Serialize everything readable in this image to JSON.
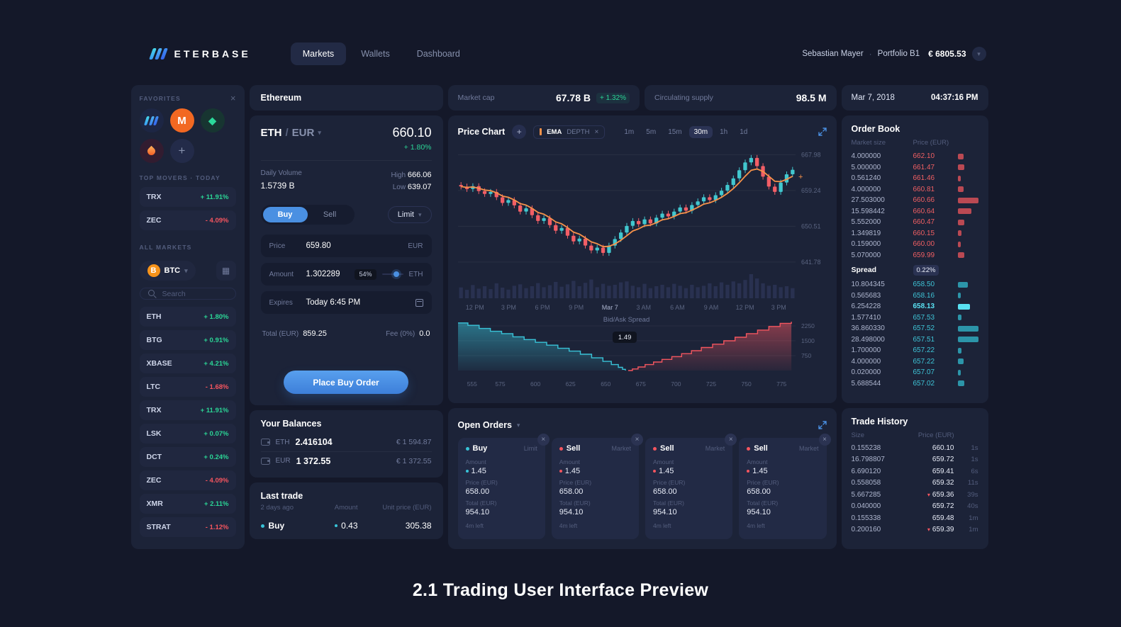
{
  "icons": {
    "close": "×",
    "chevron_down": "▾",
    "plus": "+",
    "down_triangle": "▾",
    "grid": "▦"
  },
  "brand": {
    "name": "ETERBASE"
  },
  "nav": {
    "items": [
      {
        "label": "Markets",
        "active": true
      },
      {
        "label": "Wallets"
      },
      {
        "label": "Dashboard"
      }
    ]
  },
  "user": {
    "name": "Sebastian Mayer",
    "sep": "·",
    "portfolio": "Portfolio B1",
    "balance": "€ 6805.53"
  },
  "sidebar": {
    "favorites_label": "FAVORITES",
    "top_movers_label": "TOP MOVERS · TODAY",
    "all_markets_label": "ALL MARKETS",
    "favorites": [
      {
        "name": "eterbase-icon",
        "style": "eterbase",
        "glyph": "",
        "bg": "#1d2644"
      },
      {
        "name": "monero-icon",
        "style": "monero",
        "glyph": "M",
        "bg": "#f26822"
      },
      {
        "name": "green-coin-icon",
        "style": "coin",
        "glyph": "◆",
        "bg": "#173531"
      },
      {
        "name": "flame-icon",
        "style": "flame",
        "glyph": "",
        "bg": "#321c30"
      },
      {
        "name": "add-favorite-icon",
        "style": "add",
        "glyph": "+",
        "bg": "#232b49"
      }
    ],
    "top_movers": [
      {
        "pair": "TRX",
        "change": "+ 11.91%",
        "dir": "up"
      },
      {
        "pair": "ZEC",
        "change": "- 4.09%",
        "dir": "down"
      }
    ],
    "quote": {
      "label": "BTC",
      "icon_glyph": "B"
    },
    "search": {
      "placeholder": "Search"
    },
    "markets": [
      {
        "pair": "ETH",
        "change": "+ 1.80%",
        "dir": "up"
      },
      {
        "pair": "BTG",
        "change": "+ 0.91%",
        "dir": "up"
      },
      {
        "pair": "XBASE",
        "change": "+ 4.21%",
        "dir": "up"
      },
      {
        "pair": "LTC",
        "change": "- 1.68%",
        "dir": "down"
      },
      {
        "pair": "TRX",
        "change": "+ 11.91%",
        "dir": "up"
      },
      {
        "pair": "LSK",
        "change": "+ 0.07%",
        "dir": "up"
      },
      {
        "pair": "DCT",
        "change": "+ 0.24%",
        "dir": "up"
      },
      {
        "pair": "ZEC",
        "change": "- 4.09%",
        "dir": "down"
      },
      {
        "pair": "XMR",
        "change": "+ 2.11%",
        "dir": "up"
      },
      {
        "pair": "STRAT",
        "change": "- 1.12%",
        "dir": "down"
      }
    ]
  },
  "market_header": {
    "title": "Ethereum"
  },
  "ticker": {
    "base": "ETH",
    "sep": "/",
    "quote": "EUR",
    "price": "660.10",
    "change": "+ 1.80%"
  },
  "market_stats": {
    "volume_label": "Daily Volume",
    "volume": "1.5739 B",
    "high_label": "High",
    "high": "666.06",
    "low_label": "Low",
    "low": "639.07"
  },
  "order_form": {
    "buy_label": "Buy",
    "sell_label": "Sell",
    "type": "Limit",
    "price": {
      "label": "Price",
      "value": "659.80",
      "unit": "EUR"
    },
    "amount": {
      "label": "Amount",
      "value": "1.302289",
      "percent": "54%",
      "unit": "ETH"
    },
    "expires": {
      "label": "Expires",
      "value": "Today 6:45 PM"
    },
    "total_label": "Total (EUR)",
    "total": "859.25",
    "fee_label": "Fee (0%)",
    "fee": "0.0",
    "submit_label": "Place Buy Order"
  },
  "balances": {
    "title": "Your Balances",
    "rows": [
      {
        "currency": "ETH",
        "amount": "2.416104",
        "fiat": "€ 1 594.87"
      },
      {
        "currency": "EUR",
        "amount": "1 372.55",
        "fiat": "€ 1 372.55"
      }
    ]
  },
  "last_trade": {
    "title": "Last trade",
    "ago": "2 days ago",
    "amount_col": "Amount",
    "price_col": "Unit price (EUR)",
    "side": "Buy",
    "amount": "0.43",
    "price": "305.38"
  },
  "stats": {
    "market_cap_label": "Market cap",
    "market_cap": "67.78 B",
    "market_cap_change": "+ 1.32%",
    "supply_label": "Circulating supply",
    "supply": "98.5 M",
    "date": "Mar 7, 2018",
    "time": "04:37:16 PM"
  },
  "price_chart": {
    "title": "Price Chart",
    "ema_label": "EMA",
    "depth_label": "DEPTH",
    "intervals": [
      {
        "label": "1m"
      },
      {
        "label": "5m"
      },
      {
        "label": "15m"
      },
      {
        "label": "30m",
        "active": true
      },
      {
        "label": "1h"
      },
      {
        "label": "1d"
      }
    ]
  },
  "chart_data": [
    {
      "type": "candlestick",
      "title": "Price Chart",
      "overlay": "EMA",
      "x_labels": [
        "12 PM",
        "3 PM",
        "6 PM",
        "9 PM",
        "Mar 7",
        "3 AM",
        "6 AM",
        "9 AM",
        "12 PM",
        "3 PM"
      ],
      "y_ticks": [
        667.98,
        659.24,
        650.51,
        641.78
      ],
      "ylim": [
        640.2,
        669.6
      ],
      "open_first": 660.6,
      "closes": [
        660.2,
        659.6,
        660.3,
        659.1,
        658.4,
        658.9,
        657.6,
        656.2,
        656.9,
        655.6,
        654.1,
        654.9,
        653.2,
        651.8,
        652.5,
        650.8,
        649.4,
        650.1,
        648.2,
        646.8,
        647.5,
        645.8,
        644.6,
        645.3,
        644.0,
        645.8,
        647.4,
        649.0,
        650.6,
        651.8,
        651.0,
        652.2,
        651.2,
        652.6,
        653.6,
        652.9,
        654.1,
        655.1,
        654.3,
        655.7,
        656.6,
        657.6,
        656.9,
        658.1,
        659.2,
        660.6,
        662.2,
        664.2,
        666.1,
        667.2,
        665.2,
        662.6,
        660.2,
        658.9,
        661.2,
        663.2,
        664.3
      ],
      "volumes": [
        0.45,
        0.35,
        0.55,
        0.4,
        0.5,
        0.38,
        0.62,
        0.44,
        0.36,
        0.52,
        0.58,
        0.42,
        0.5,
        0.63,
        0.46,
        0.54,
        0.68,
        0.48,
        0.58,
        0.72,
        0.5,
        0.64,
        0.78,
        0.46,
        0.6,
        0.52,
        0.56,
        0.66,
        0.7,
        0.52,
        0.46,
        0.6,
        0.42,
        0.5,
        0.56,
        0.46,
        0.6,
        0.52,
        0.42,
        0.56,
        0.46,
        0.52,
        0.62,
        0.5,
        0.66,
        0.56,
        0.7,
        0.62,
        0.76,
        1.0,
        0.82,
        0.62,
        0.52,
        0.56,
        0.46,
        0.5,
        0.42
      ]
    },
    {
      "type": "depth",
      "title": "Bid/Ask Spread",
      "spread_label": "1.49",
      "xlim": [
        545,
        785
      ],
      "ylim": [
        0,
        2500
      ],
      "y_ticks": [
        2250,
        1500,
        750
      ],
      "x_ticks": [
        555,
        575,
        600,
        625,
        650,
        675,
        700,
        725,
        750,
        775
      ],
      "bids": [
        [
          545,
          2400
        ],
        [
          552,
          2280
        ],
        [
          560,
          2120
        ],
        [
          568,
          1980
        ],
        [
          576,
          1860
        ],
        [
          584,
          1700
        ],
        [
          592,
          1560
        ],
        [
          600,
          1420
        ],
        [
          608,
          1280
        ],
        [
          616,
          1120
        ],
        [
          624,
          980
        ],
        [
          632,
          820
        ],
        [
          640,
          640
        ],
        [
          648,
          460
        ],
        [
          654,
          300
        ],
        [
          659,
          160
        ],
        [
          662,
          60
        ],
        [
          664,
          0
        ]
      ],
      "asks": [
        [
          666,
          0
        ],
        [
          669,
          80
        ],
        [
          673,
          180
        ],
        [
          678,
          300
        ],
        [
          684,
          430
        ],
        [
          690,
          560
        ],
        [
          697,
          700
        ],
        [
          704,
          850
        ],
        [
          711,
          1000
        ],
        [
          718,
          1160
        ],
        [
          726,
          1330
        ],
        [
          734,
          1500
        ],
        [
          742,
          1680
        ],
        [
          750,
          1860
        ],
        [
          758,
          2040
        ],
        [
          766,
          2220
        ],
        [
          774,
          2380
        ],
        [
          782,
          2460
        ]
      ]
    }
  ],
  "order_book": {
    "title": "Order Book",
    "size_col": "Market size",
    "price_col": "Price (EUR)",
    "asks": [
      {
        "size": "4.000000",
        "price": "662.10"
      },
      {
        "size": "5.000000",
        "price": "661.47"
      },
      {
        "size": "0.561240",
        "price": "661.46"
      },
      {
        "size": "4.000000",
        "price": "660.81"
      },
      {
        "size": "27.503000",
        "price": "660.66"
      },
      {
        "size": "15.598442",
        "price": "660.64"
      },
      {
        "size": "5.552000",
        "price": "660.47"
      },
      {
        "size": "1.349819",
        "price": "660.15"
      },
      {
        "size": "0.159000",
        "price": "660.00"
      },
      {
        "size": "5.070000",
        "price": "659.99"
      }
    ],
    "spread_label": "Spread",
    "spread": "0.22%",
    "bids": [
      {
        "size": "10.804345",
        "price": "658.50"
      },
      {
        "size": "0.565683",
        "price": "658.16"
      },
      {
        "size": "6.254228",
        "price": "658.13",
        "hl": true
      },
      {
        "size": "1.577410",
        "price": "657.53"
      },
      {
        "size": "36.860330",
        "price": "657.52"
      },
      {
        "size": "28.498000",
        "price": "657.51"
      },
      {
        "size": "1.700000",
        "price": "657.22"
      },
      {
        "size": "4.000000",
        "price": "657.22"
      },
      {
        "size": "0.020000",
        "price": "657.07"
      },
      {
        "size": "5.688544",
        "price": "657.02"
      }
    ]
  },
  "open_orders": {
    "title": "Open Orders",
    "cards": [
      {
        "side": "Buy",
        "type": "Limit",
        "dir": "buy",
        "amount_label": "Amount",
        "amount": "1.45",
        "price_label": "Price (EUR)",
        "price": "658.00",
        "total_label": "Total (EUR)",
        "total": "954.10",
        "time_left": "4m left"
      },
      {
        "side": "Sell",
        "type": "Market",
        "dir": "sell",
        "amount_label": "Amount",
        "amount": "1.45",
        "price_label": "Price (EUR)",
        "price": "658.00",
        "total_label": "Total (EUR)",
        "total": "954.10",
        "time_left": "4m left"
      },
      {
        "side": "Sell",
        "type": "Market",
        "dir": "sell",
        "amount_label": "Amount",
        "amount": "1.45",
        "price_label": "Price (EUR)",
        "price": "658.00",
        "total_label": "Total (EUR)",
        "total": "954.10",
        "time_left": "4m left"
      },
      {
        "side": "Sell",
        "type": "Market",
        "dir": "sell",
        "amount_label": "Amount",
        "amount": "1.45",
        "price_label": "Price (EUR)",
        "price": "658.00",
        "total_label": "Total (EUR)",
        "total": "954.10",
        "time_left": "4m left"
      }
    ]
  },
  "trade_history": {
    "title": "Trade History",
    "size_col": "Size",
    "price_col": "Price (EUR)",
    "rows": [
      {
        "size": "0.155238",
        "price": "660.10",
        "time": "1s"
      },
      {
        "size": "16.798807",
        "price": "659.72",
        "time": "1s"
      },
      {
        "size": "6.690120",
        "price": "659.41",
        "time": "6s"
      },
      {
        "size": "0.558058",
        "price": "659.32",
        "time": "11s"
      },
      {
        "size": "5.667285",
        "price": "659.36",
        "time": "39s",
        "down": true
      },
      {
        "size": "0.040000",
        "price": "659.72",
        "time": "40s"
      },
      {
        "size": "0.155338",
        "price": "659.48",
        "time": "1m"
      },
      {
        "size": "0.200160",
        "price": "659.39",
        "time": "1m",
        "down": true
      }
    ]
  },
  "caption": "2.1 Trading User Interface Preview"
}
